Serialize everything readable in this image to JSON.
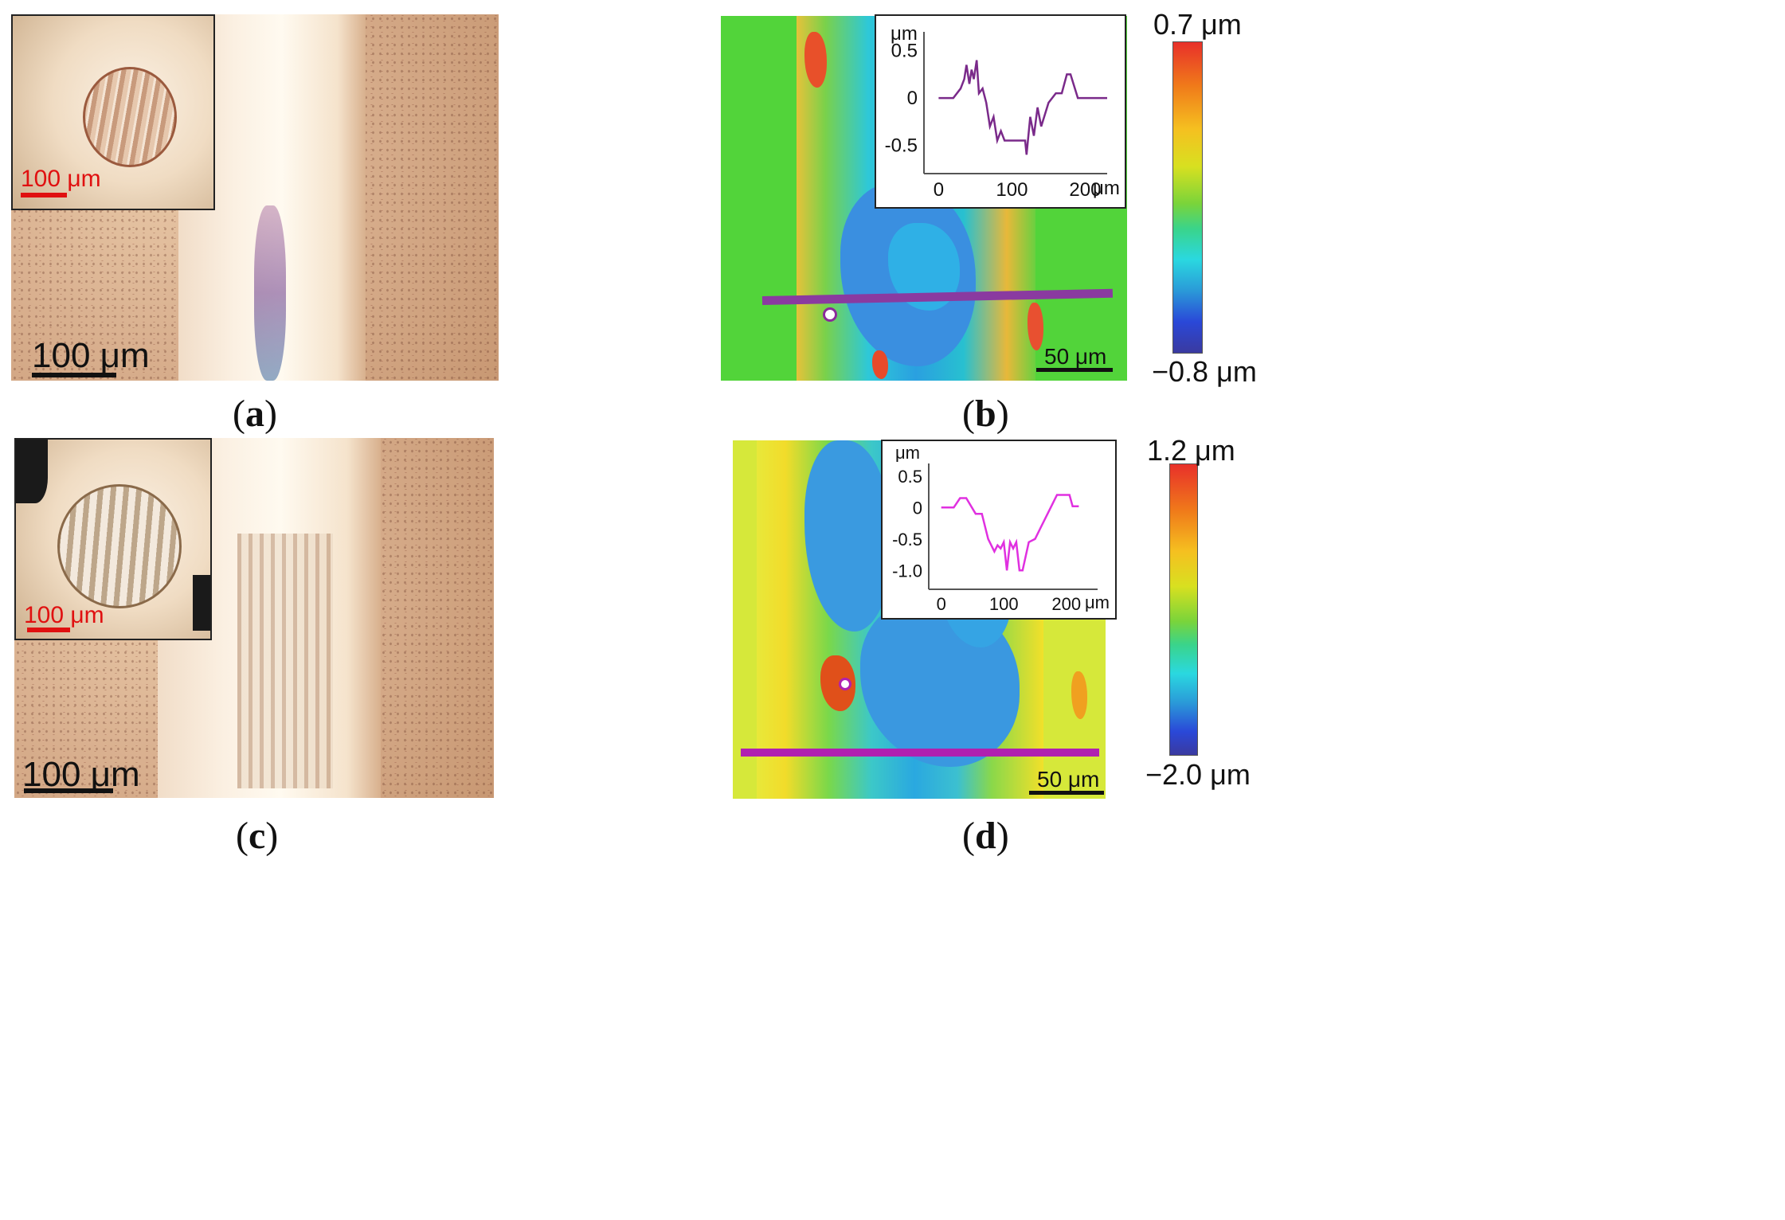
{
  "panels": {
    "a": {
      "caption_open": "(",
      "caption_letter": "a",
      "caption_close": ")",
      "scale_label": "100 μm",
      "inset_scale_label": "100 μm"
    },
    "b": {
      "caption_open": "(",
      "caption_letter": "b",
      "caption_close": ")",
      "scale_label": "50  μm",
      "colorbar_max": "0.7 μm",
      "colorbar_min": "−0.8 μm",
      "inset_y_unit": "μm",
      "inset_x_unit": "μm",
      "inset_y_ticks": [
        "0.5",
        "0",
        "-0.5"
      ],
      "inset_x_ticks": [
        "0",
        "100",
        "200"
      ]
    },
    "c": {
      "caption_open": "(",
      "caption_letter": "c",
      "caption_close": ")",
      "scale_label": "100 μm",
      "inset_scale_label": "100 μm"
    },
    "d": {
      "caption_open": "(",
      "caption_letter": "d",
      "caption_close": ")",
      "scale_label": "50  μm",
      "colorbar_max": "1.2 μm",
      "colorbar_min": "−2.0 μm",
      "inset_y_unit": "μm",
      "inset_x_unit": "μm",
      "inset_y_ticks": [
        "0.5",
        "0",
        "-0.5",
        "-1.0"
      ],
      "inset_x_ticks": [
        "0",
        "100",
        "200"
      ]
    }
  },
  "colors": {
    "profile_b": "#7a2a8a",
    "profile_d": "#e030e0",
    "section_line_b": "#8a3aa0",
    "section_line_d": "#b020b0",
    "scale_red": "#e01010"
  },
  "chart_data": [
    {
      "type": "line",
      "panel": "b",
      "ylim": [
        -0.8,
        0.7
      ],
      "xlim": [
        -20,
        230
      ],
      "series": [
        {
          "x": [
            0,
            20,
            30,
            35,
            38,
            42,
            45,
            48,
            52,
            55,
            60,
            65,
            70,
            75,
            80,
            85,
            90,
            100,
            110,
            118,
            120,
            125,
            130,
            135,
            140,
            150,
            160,
            168,
            175,
            180,
            190,
            200,
            230
          ],
          "y": [
            0,
            0,
            0.1,
            0.2,
            0.35,
            0.15,
            0.3,
            0.2,
            0.4,
            0.05,
            0.1,
            -0.05,
            -0.3,
            -0.2,
            -0.45,
            -0.35,
            -0.45,
            -0.45,
            -0.45,
            -0.45,
            -0.6,
            -0.2,
            -0.4,
            -0.1,
            -0.3,
            -0.05,
            0.05,
            0.05,
            0.25,
            0.25,
            0,
            0,
            0
          ]
        }
      ]
    },
    {
      "type": "line",
      "panel": "d",
      "ylim": [
        -1.3,
        0.7
      ],
      "xlim": [
        -20,
        250
      ],
      "series": [
        {
          "x": [
            0,
            20,
            30,
            40,
            55,
            65,
            75,
            80,
            85,
            90,
            95,
            100,
            105,
            110,
            115,
            120,
            125,
            130,
            140,
            150,
            160,
            170,
            185,
            195,
            205,
            210,
            220
          ],
          "y": [
            0,
            0,
            0.15,
            0.15,
            -0.1,
            -0.1,
            -0.5,
            -0.6,
            -0.7,
            -0.6,
            -0.65,
            -0.55,
            -1.0,
            -0.55,
            -0.65,
            -0.55,
            -1.0,
            -1.0,
            -0.55,
            -0.5,
            -0.3,
            -0.1,
            0.2,
            0.2,
            0.2,
            0.02,
            0.02
          ]
        }
      ]
    }
  ]
}
